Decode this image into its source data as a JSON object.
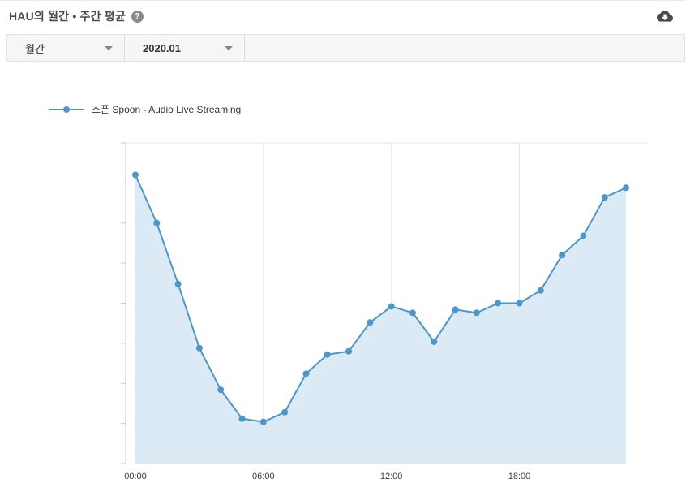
{
  "header": {
    "title": "HAU의 월간 • 주간 평균",
    "help_glyph": "?",
    "download_icon": "cloud-download"
  },
  "filters": {
    "period_value": "월간",
    "month_value": "2020.01"
  },
  "legend": {
    "label": "스푼 Spoon - Audio Live Streaming"
  },
  "chart_data": {
    "type": "area",
    "title": "HAU의 월간 • 주간 평균",
    "x": [
      "00:00",
      "01:00",
      "02:00",
      "03:00",
      "04:00",
      "05:00",
      "06:00",
      "07:00",
      "08:00",
      "09:00",
      "10:00",
      "11:00",
      "12:00",
      "13:00",
      "14:00",
      "15:00",
      "16:00",
      "17:00",
      "18:00",
      "19:00",
      "20:00",
      "21:00",
      "22:00",
      "23:00"
    ],
    "series": [
      {
        "name": "스푼 Spoon - Audio Live Streaming",
        "values": [
          90,
          75,
          56,
          36,
          23,
          14,
          13,
          16,
          28,
          34,
          35,
          44,
          49,
          47,
          38,
          48,
          47,
          50,
          50,
          54,
          65,
          71,
          83,
          86
        ]
      }
    ],
    "x_tick_indices": [
      0,
      6,
      12,
      18
    ],
    "x_tick_labels": [
      "00:00",
      "06:00",
      "12:00",
      "18:00"
    ],
    "ylim": [
      0,
      100
    ],
    "y_axis_labels_visible": false,
    "grid": "vertical gridlines at 6h intervals, top boundary line, y-axis ticks only (no y labels)",
    "legend_position": "top-left",
    "colors": {
      "line": "#4d96c8",
      "marker": "#4d96c8",
      "fill": "#dbeaf4",
      "grid": "#e4e7ea",
      "axis": "#c6cacd",
      "tick_text": "#3c3c3c"
    }
  }
}
